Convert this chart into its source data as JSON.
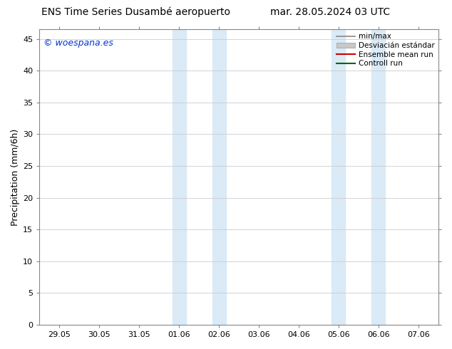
{
  "title_left": "ENS Time Series Dusambé aeropuerto",
  "title_right": "mar. 28.05.2024 03 UTC",
  "ylabel": "Precipitation (mm/6h)",
  "ylim": [
    0,
    46.5
  ],
  "yticks": [
    0,
    5,
    10,
    15,
    20,
    25,
    30,
    35,
    40,
    45
  ],
  "xtick_labels": [
    "29.05",
    "30.05",
    "31.05",
    "01.06",
    "02.06",
    "03.06",
    "04.06",
    "05.06",
    "06.06",
    "07.06"
  ],
  "xtick_positions": [
    0,
    1,
    2,
    3,
    4,
    5,
    6,
    7,
    8,
    9
  ],
  "shaded_bands": [
    {
      "xmin": 2.83,
      "xmax": 3.17,
      "color": "#daeaf6"
    },
    {
      "xmin": 3.83,
      "xmax": 4.17,
      "color": "#daeaf6"
    },
    {
      "xmin": 6.83,
      "xmax": 7.17,
      "color": "#daeaf6"
    },
    {
      "xmin": 7.83,
      "xmax": 8.17,
      "color": "#daeaf6"
    }
  ],
  "logo_text": "© woespana.es",
  "logo_color": "#0033cc",
  "background_color": "#ffffff",
  "plot_bg_color": "#ffffff",
  "grid_color": "#cccccc",
  "title_fontsize": 10,
  "axis_fontsize": 9,
  "tick_fontsize": 8,
  "legend_fontsize": 7.5
}
